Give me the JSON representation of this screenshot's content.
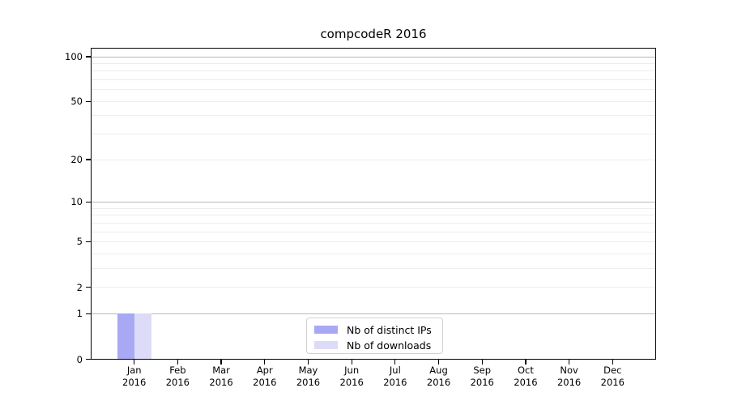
{
  "title": "compcodeR 2016",
  "chart_data": {
    "type": "bar",
    "title": "compcodeR 2016",
    "x_categories": [
      {
        "month": "Jan",
        "year": "2016"
      },
      {
        "month": "Feb",
        "year": "2016"
      },
      {
        "month": "Mar",
        "year": "2016"
      },
      {
        "month": "Apr",
        "year": "2016"
      },
      {
        "month": "May",
        "year": "2016"
      },
      {
        "month": "Jun",
        "year": "2016"
      },
      {
        "month": "Jul",
        "year": "2016"
      },
      {
        "month": "Aug",
        "year": "2016"
      },
      {
        "month": "Sep",
        "year": "2016"
      },
      {
        "month": "Oct",
        "year": "2016"
      },
      {
        "month": "Nov",
        "year": "2016"
      },
      {
        "month": "Dec",
        "year": "2016"
      }
    ],
    "series": [
      {
        "name": "Nb of distinct IPs",
        "color": "#a8a8f4",
        "values": [
          1,
          0,
          0,
          0,
          0,
          0,
          0,
          0,
          0,
          0,
          0,
          0
        ]
      },
      {
        "name": "Nb of downloads",
        "color": "#dcdcf8",
        "values": [
          1,
          0,
          0,
          0,
          0,
          0,
          0,
          0,
          0,
          0,
          0,
          0
        ]
      }
    ],
    "y_scale": "log10(1+x)",
    "y_ticks": [
      0,
      1,
      2,
      5,
      10,
      20,
      50,
      100
    ],
    "y_major_gridlines": [
      1,
      10,
      100
    ],
    "y_minor_gridlines": [
      2,
      3,
      4,
      5,
      6,
      7,
      8,
      9,
      20,
      30,
      40,
      50,
      60,
      70,
      80,
      90
    ],
    "ylim": [
      0,
      110
    ],
    "grid": "horizontal",
    "legend_position": "lower center",
    "colors": {
      "major_grid": "#b9b9b9",
      "minor_grid": "#ededed",
      "axis": "#000000",
      "legend_border": "#d2d2d2",
      "background": "#ffffff"
    }
  }
}
